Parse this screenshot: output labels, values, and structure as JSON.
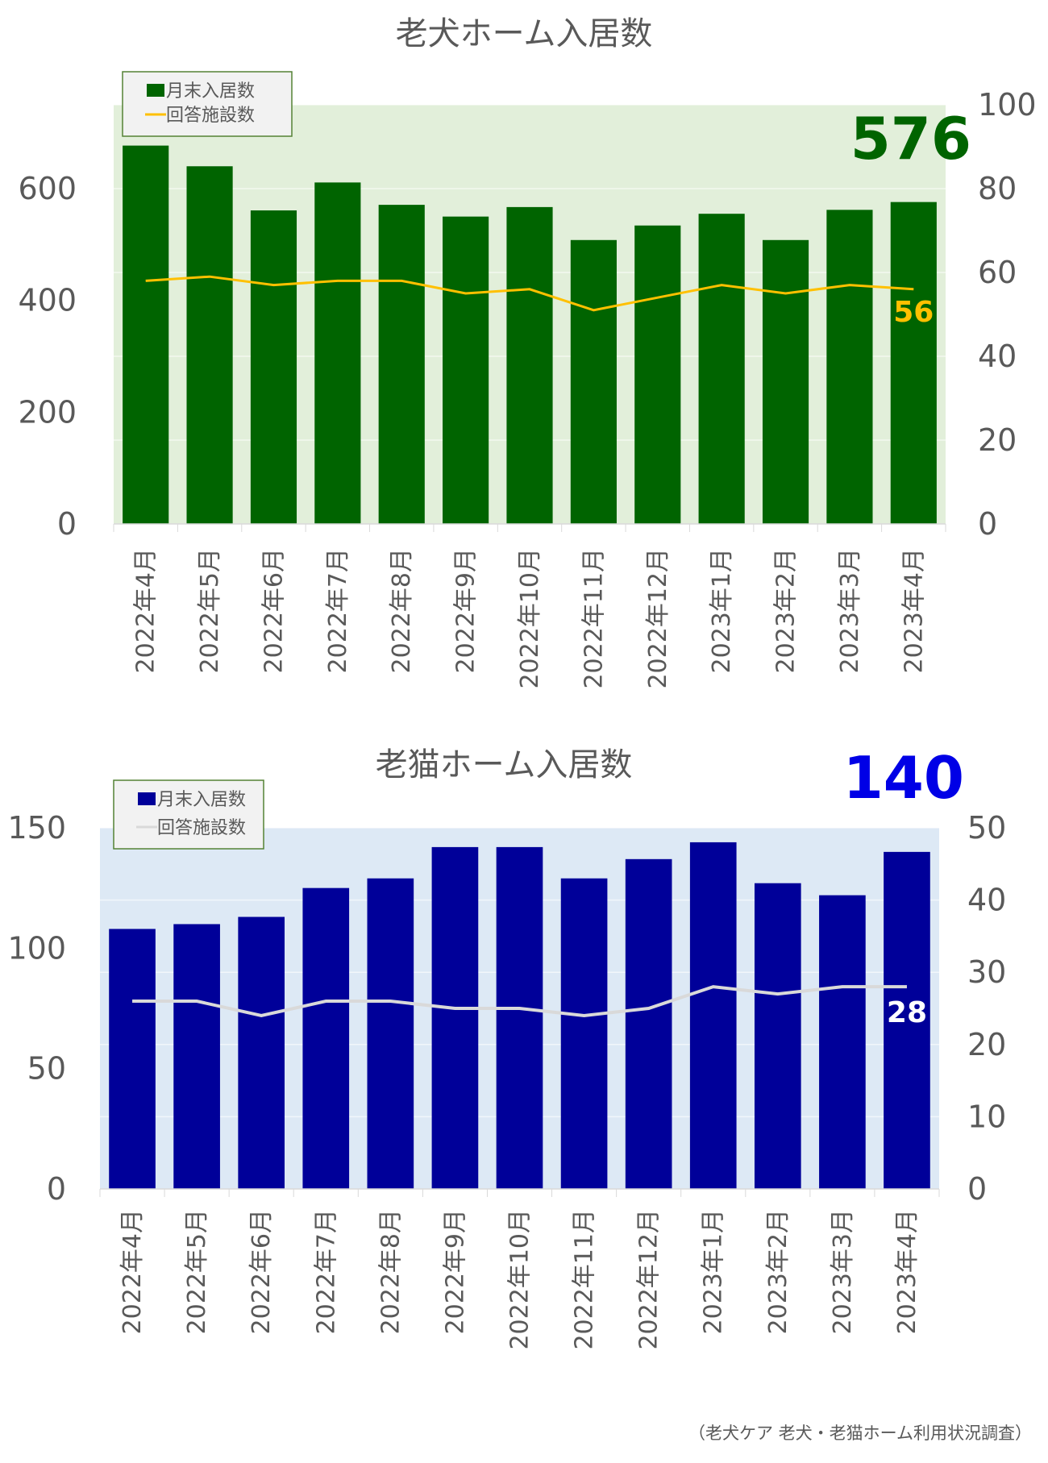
{
  "chart_data": [
    {
      "type": "bar",
      "title": "老犬ホーム入居数",
      "categories": [
        "2022年4月",
        "2022年5月",
        "2022年6月",
        "2022年7月",
        "2022年8月",
        "2022年9月",
        "2022年10月",
        "2022年11月",
        "2022年12月",
        "2023年1月",
        "2023年2月",
        "2023年3月",
        "2023年4月"
      ],
      "series": [
        {
          "name": "月末入居数",
          "type": "bar",
          "axis": "left",
          "color": "#006400",
          "values": [
            677,
            640,
            561,
            611,
            571,
            550,
            567,
            508,
            534,
            555,
            508,
            562,
            576
          ]
        },
        {
          "name": "回答施設数",
          "type": "line",
          "axis": "right",
          "color": "#ffc000",
          "values": [
            58,
            59,
            57,
            58,
            58,
            55,
            56,
            51,
            54,
            57,
            55,
            57,
            56
          ]
        }
      ],
      "ylim_left": [
        0,
        750
      ],
      "yticks_left": [
        "0",
        "200",
        "400",
        "600"
      ],
      "ylim_right": [
        0,
        100
      ],
      "yticks_right": [
        "0",
        "20",
        "40",
        "60",
        "80",
        "100"
      ],
      "highlight_label": "576",
      "highlight_color": "#006400",
      "last_line_label": "56",
      "background": "#e2efda",
      "legend_position": "top-left"
    },
    {
      "type": "bar",
      "title": "老猫ホーム入居数",
      "categories": [
        "2022年4月",
        "2022年5月",
        "2022年6月",
        "2022年7月",
        "2022年8月",
        "2022年9月",
        "2022年10月",
        "2022年11月",
        "2022年12月",
        "2023年1月",
        "2023年2月",
        "2023年3月",
        "2023年4月"
      ],
      "series": [
        {
          "name": "月末入居数",
          "type": "bar",
          "axis": "left",
          "color": "#000099",
          "values": [
            108,
            110,
            113,
            125,
            129,
            142,
            142,
            129,
            137,
            144,
            127,
            122,
            140
          ]
        },
        {
          "name": "回答施設数",
          "type": "line",
          "axis": "right",
          "color": "#d9d9d9",
          "values": [
            26,
            26,
            24,
            26,
            26,
            25,
            25,
            24,
            25,
            28,
            27,
            28,
            28
          ]
        }
      ],
      "ylim_left": [
        0,
        150
      ],
      "yticks_left": [
        "0",
        "50",
        "100",
        "150"
      ],
      "ylim_right": [
        0,
        50
      ],
      "yticks_right": [
        "0",
        "10",
        "20",
        "30",
        "40",
        "50"
      ],
      "highlight_label": "140",
      "highlight_color": "#0000e6",
      "last_line_label": "28",
      "background": "#dde9f5",
      "legend_position": "top-left"
    }
  ],
  "source_note": "（老犬ケア 老犬・老猫ホーム利用状況調査）"
}
